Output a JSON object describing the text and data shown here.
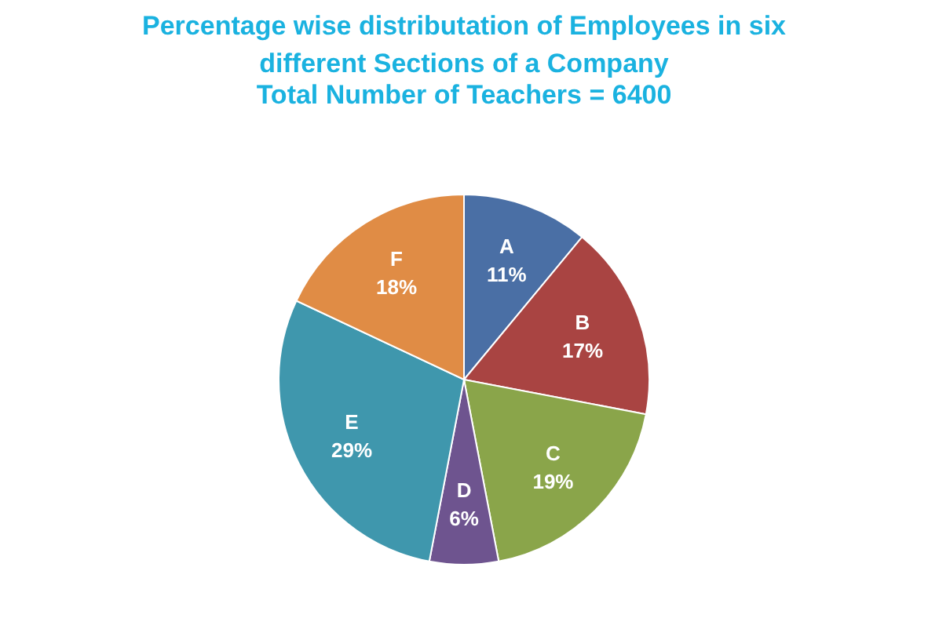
{
  "chart_data": {
    "type": "pie",
    "title": "Percentage wise distributation of Employees in six different Sections of a Company",
    "subtitle": "Total Number of Teachers = 6400",
    "categories": [
      "A",
      "B",
      "C",
      "D",
      "E",
      "F"
    ],
    "values": [
      11,
      17,
      19,
      6,
      29,
      18
    ],
    "value_labels": [
      "11%",
      "17%",
      "19%",
      "6%",
      "29%",
      "18%"
    ],
    "colors": [
      "#4a6fa5",
      "#a94442",
      "#8aa54a",
      "#6e548f",
      "#3f97ad",
      "#e08c45"
    ],
    "legend": false
  }
}
